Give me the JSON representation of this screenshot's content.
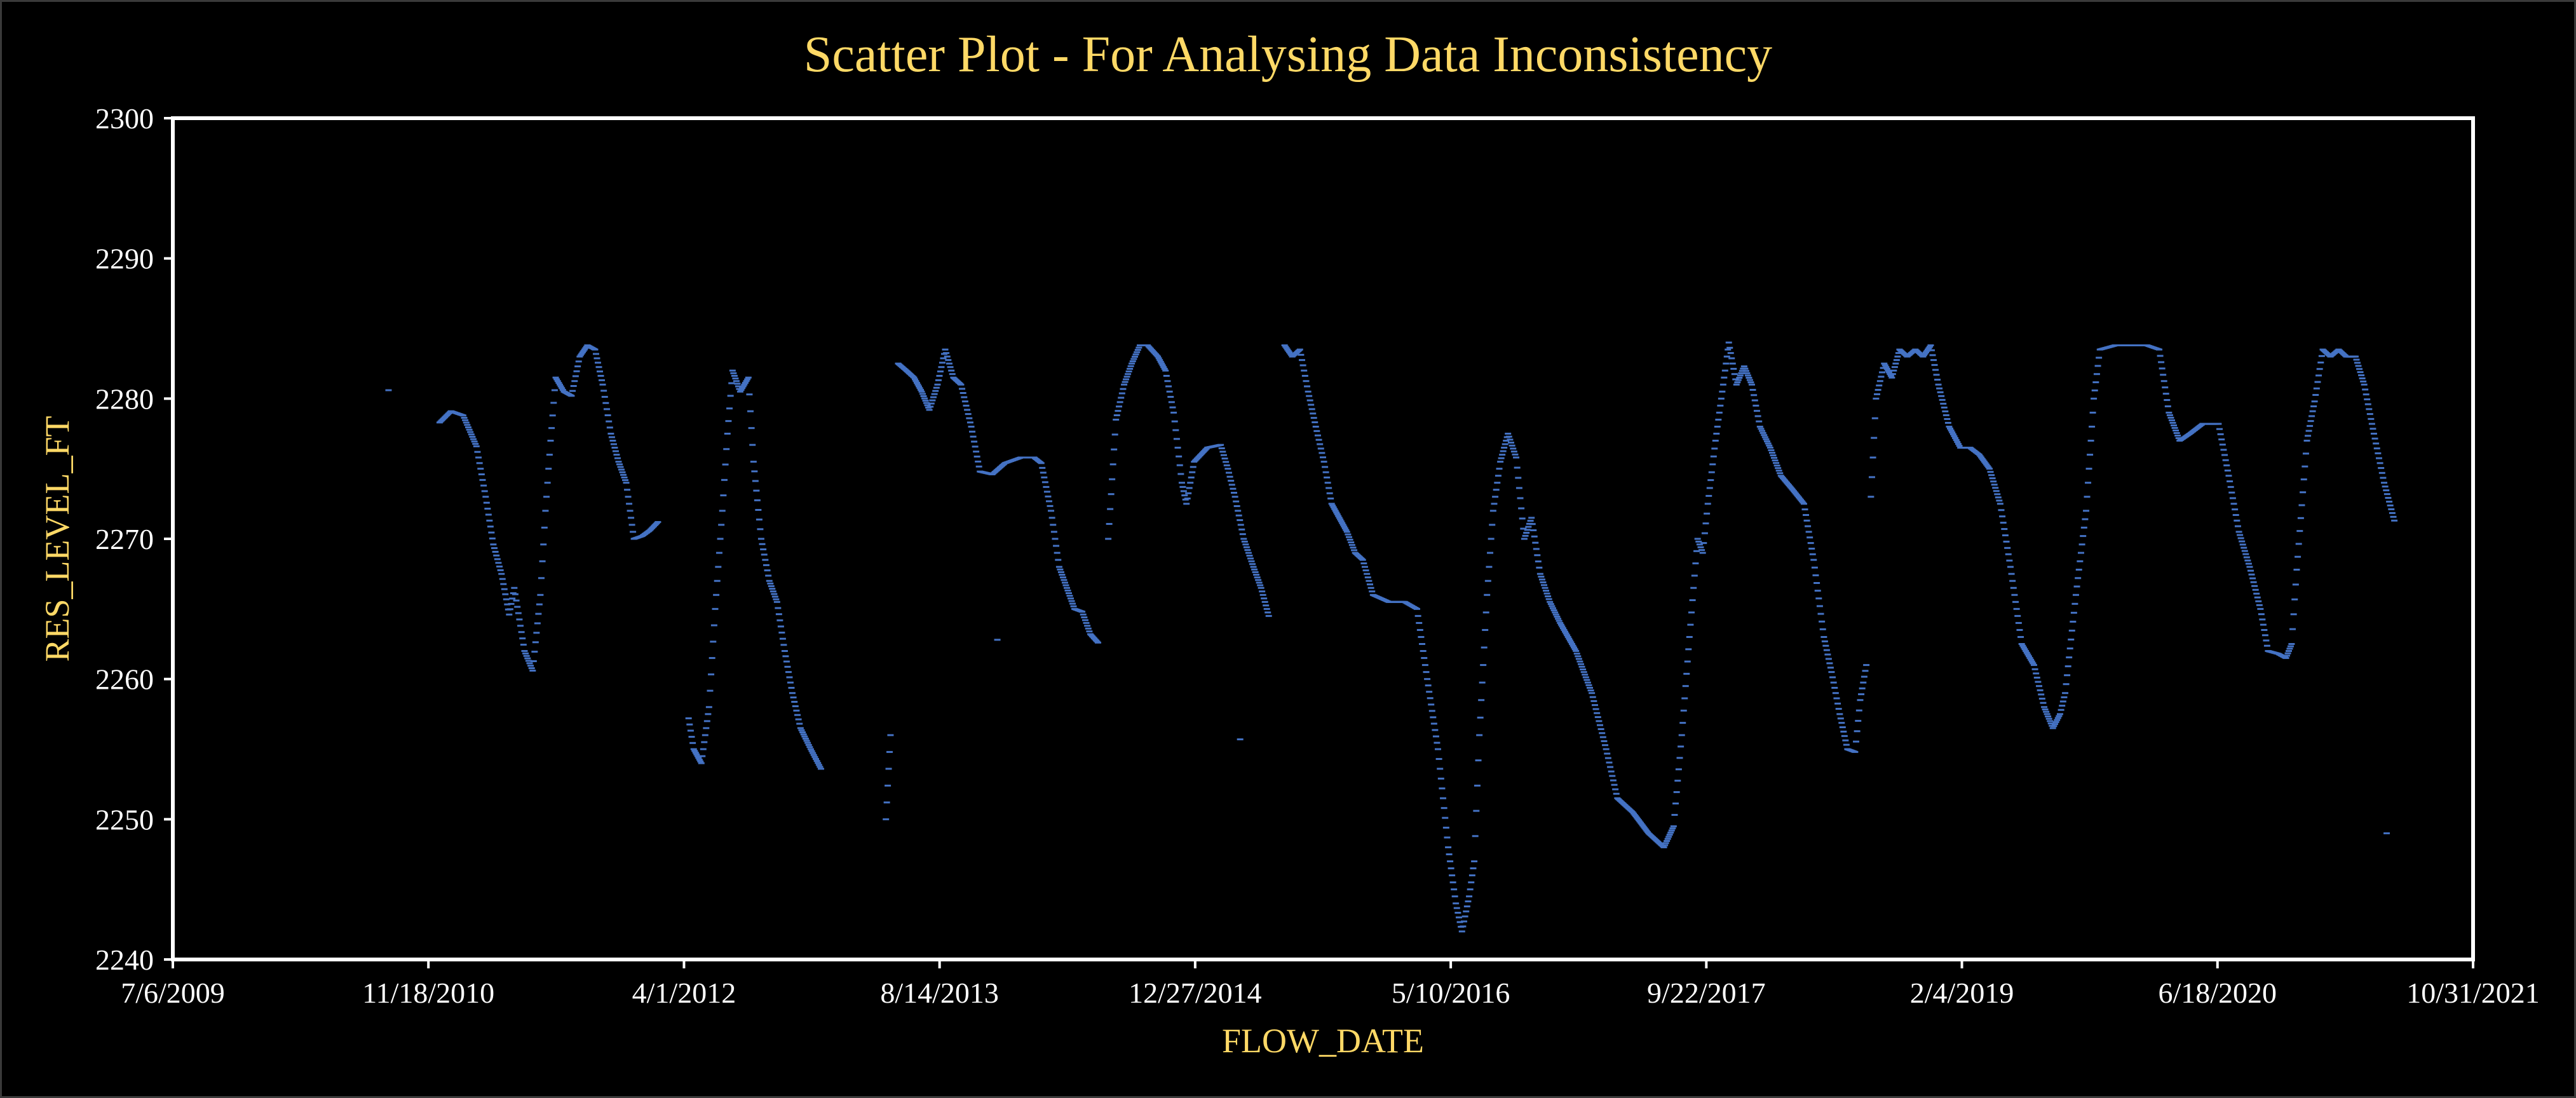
{
  "colors": {
    "background": "#000000",
    "title": "#ffd966",
    "axis_title": "#ffd966",
    "tick_label": "#ffffff",
    "frame": "#ffffff",
    "series": "#4472c4"
  },
  "chart_data": {
    "type": "scatter",
    "title": "Scatter Plot - For Analysing Data Inconsistency",
    "xlabel": "FLOW_DATE",
    "ylabel": "RES_LEVEL_FT",
    "x_type": "date",
    "xlim": [
      "2009-07-06",
      "2021-10-31"
    ],
    "ylim": [
      2240,
      2300
    ],
    "x_ticks": [
      "7/6/2009",
      "11/18/2010",
      "4/1/2012",
      "8/14/2013",
      "12/27/2014",
      "5/10/2016",
      "9/22/2017",
      "2/4/2019",
      "6/18/2020",
      "10/31/2021"
    ],
    "y_ticks": [
      2240,
      2250,
      2260,
      2270,
      2280,
      2290,
      2300
    ],
    "grid": false,
    "legend": "none",
    "series": [
      {
        "marker": "dash",
        "points": [
          [
            "2010-09-01",
            2280.6
          ],
          [
            "2010-12-10",
            2278.3
          ],
          [
            "2011-01-01",
            2279.1
          ],
          [
            "2011-01-25",
            2278.8
          ],
          [
            "2011-02-20",
            2276.6
          ],
          [
            "2011-03-10",
            2273.0
          ],
          [
            "2011-03-25",
            2269.6
          ],
          [
            "2011-04-10",
            2267.5
          ],
          [
            "2011-04-25",
            2264.6
          ],
          [
            "2011-05-05",
            2266.5
          ],
          [
            "2011-05-25",
            2262.0
          ],
          [
            "2011-06-10",
            2260.6
          ],
          [
            "2011-06-25",
            2266.0
          ],
          [
            "2011-07-05",
            2272.0
          ],
          [
            "2011-07-15",
            2277.0
          ],
          [
            "2011-07-25",
            2281.5
          ],
          [
            "2011-08-10",
            2280.5
          ],
          [
            "2011-08-25",
            2280.2
          ],
          [
            "2011-09-10",
            2283.0
          ],
          [
            "2011-09-25",
            2283.8
          ],
          [
            "2011-10-10",
            2283.5
          ],
          [
            "2011-10-25",
            2281.0
          ],
          [
            "2011-11-10",
            2277.5
          ],
          [
            "2011-11-25",
            2275.5
          ],
          [
            "2011-12-10",
            2274.0
          ],
          [
            "2011-12-25",
            2270.0
          ],
          [
            "2012-01-10",
            2270.2
          ],
          [
            "2012-01-25",
            2270.6
          ],
          [
            "2012-02-10",
            2271.2
          ],
          [
            "2012-04-10",
            2257.2
          ],
          [
            "2012-04-20",
            2255.0
          ],
          [
            "2012-05-05",
            2254.0
          ],
          [
            "2012-05-20",
            2258.0
          ],
          [
            "2012-06-01",
            2265.0
          ],
          [
            "2012-06-15",
            2272.0
          ],
          [
            "2012-06-25",
            2277.5
          ],
          [
            "2012-07-05",
            2282.0
          ],
          [
            "2012-07-20",
            2280.5
          ],
          [
            "2012-08-05",
            2281.5
          ],
          [
            "2012-08-15",
            2275.5
          ],
          [
            "2012-08-30",
            2270.0
          ],
          [
            "2012-09-15",
            2267.0
          ],
          [
            "2012-09-30",
            2265.5
          ],
          [
            "2012-10-15",
            2262.0
          ],
          [
            "2012-10-30",
            2259.0
          ],
          [
            "2012-11-15",
            2256.5
          ],
          [
            "2012-12-05",
            2255.0
          ],
          [
            "2012-12-25",
            2253.6
          ],
          [
            "2013-05-01",
            2250.0
          ],
          [
            "2013-05-10",
            2256.0
          ],
          [
            "2013-05-25",
            2282.5
          ],
          [
            "2013-06-10",
            2282.0
          ],
          [
            "2013-06-25",
            2281.5
          ],
          [
            "2013-07-10",
            2280.5
          ],
          [
            "2013-07-25",
            2279.2
          ],
          [
            "2013-08-10",
            2281.0
          ],
          [
            "2013-08-25",
            2283.5
          ],
          [
            "2013-09-10",
            2281.5
          ],
          [
            "2013-09-25",
            2281.0
          ],
          [
            "2013-10-15",
            2278.0
          ],
          [
            "2013-11-01",
            2274.8
          ],
          [
            "2013-11-25",
            2274.6
          ],
          [
            "2013-12-20",
            2275.4
          ],
          [
            "2014-01-20",
            2275.8
          ],
          [
            "2014-02-15",
            2275.8
          ],
          [
            "2014-03-01",
            2275.4
          ],
          [
            "2014-03-20",
            2272.0
          ],
          [
            "2014-04-05",
            2268.0
          ],
          [
            "2014-04-20",
            2266.5
          ],
          [
            "2014-05-05",
            2265.0
          ],
          [
            "2014-05-20",
            2264.8
          ],
          [
            "2014-06-05",
            2263.2
          ],
          [
            "2014-06-20",
            2262.6
          ],
          [
            "2013-12-05",
            2262.8
          ],
          [
            "2014-07-10",
            2270.0
          ],
          [
            "2014-07-25",
            2278.5
          ],
          [
            "2014-08-10",
            2281.0
          ],
          [
            "2014-08-25",
            2282.5
          ],
          [
            "2014-09-10",
            2283.8
          ],
          [
            "2014-09-25",
            2283.8
          ],
          [
            "2014-10-15",
            2283.0
          ],
          [
            "2014-10-30",
            2282.0
          ],
          [
            "2014-11-15",
            2279.0
          ],
          [
            "2014-12-01",
            2274.0
          ],
          [
            "2014-12-10",
            2272.5
          ],
          [
            "2014-12-25",
            2275.5
          ],
          [
            "2015-01-20",
            2276.5
          ],
          [
            "2015-02-15",
            2276.7
          ],
          [
            "2015-03-01",
            2275.0
          ],
          [
            "2015-03-15",
            2273.0
          ],
          [
            "2015-04-01",
            2270.0
          ],
          [
            "2015-04-20",
            2268.0
          ],
          [
            "2015-05-05",
            2266.5
          ],
          [
            "2015-05-20",
            2264.5
          ],
          [
            "2015-03-25",
            2255.7
          ],
          [
            "2015-06-20",
            2283.8
          ],
          [
            "2015-07-05",
            2283.0
          ],
          [
            "2015-07-20",
            2283.5
          ],
          [
            "2015-08-05",
            2280.5
          ],
          [
            "2015-08-20",
            2278.0
          ],
          [
            "2015-09-05",
            2275.5
          ],
          [
            "2015-09-20",
            2272.5
          ],
          [
            "2015-10-05",
            2271.5
          ],
          [
            "2015-10-20",
            2270.5
          ],
          [
            "2015-11-05",
            2269.0
          ],
          [
            "2015-11-20",
            2268.5
          ],
          [
            "2015-12-10",
            2266.0
          ],
          [
            "2016-01-10",
            2265.5
          ],
          [
            "2016-02-10",
            2265.5
          ],
          [
            "2016-03-05",
            2265.0
          ],
          [
            "2016-03-25",
            2260.0
          ],
          [
            "2016-04-15",
            2255.0
          ],
          [
            "2016-05-05",
            2248.0
          ],
          [
            "2016-05-20",
            2244.0
          ],
          [
            "2016-06-01",
            2242.0
          ],
          [
            "2016-06-15",
            2244.5
          ],
          [
            "2016-06-25",
            2247.0
          ],
          [
            "2016-07-05",
            2256.0
          ],
          [
            "2016-07-20",
            2266.0
          ],
          [
            "2016-08-01",
            2272.0
          ],
          [
            "2016-08-15",
            2275.5
          ],
          [
            "2016-08-30",
            2277.5
          ],
          [
            "2016-09-15",
            2275.8
          ],
          [
            "2016-10-01",
            2270.0
          ],
          [
            "2016-10-15",
            2271.5
          ],
          [
            "2016-11-01",
            2267.5
          ],
          [
            "2016-11-20",
            2265.5
          ],
          [
            "2016-12-10",
            2264.0
          ],
          [
            "2017-01-10",
            2262.0
          ],
          [
            "2017-02-10",
            2259.0
          ],
          [
            "2017-03-10",
            2255.0
          ],
          [
            "2017-04-01",
            2251.5
          ],
          [
            "2017-05-01",
            2250.5
          ],
          [
            "2017-06-01",
            2249.0
          ],
          [
            "2017-07-01",
            2248.0
          ],
          [
            "2017-07-20",
            2249.5
          ],
          [
            "2017-08-05",
            2256.0
          ],
          [
            "2017-08-20",
            2263.0
          ],
          [
            "2017-09-05",
            2270.0
          ],
          [
            "2017-09-15",
            2269.0
          ],
          [
            "2017-09-25",
            2272.5
          ],
          [
            "2017-10-10",
            2277.0
          ],
          [
            "2017-10-25",
            2281.0
          ],
          [
            "2017-11-05",
            2284.0
          ],
          [
            "2017-11-20",
            2281.0
          ],
          [
            "2017-12-05",
            2282.3
          ],
          [
            "2017-12-20",
            2281.0
          ],
          [
            "2018-01-05",
            2278.0
          ],
          [
            "2018-01-25",
            2276.5
          ],
          [
            "2018-02-15",
            2274.5
          ],
          [
            "2018-03-10",
            2273.5
          ],
          [
            "2018-04-01",
            2272.5
          ],
          [
            "2018-04-20",
            2268.5
          ],
          [
            "2018-05-10",
            2263.0
          ],
          [
            "2018-05-25",
            2260.5
          ],
          [
            "2018-06-10",
            2257.5
          ],
          [
            "2018-06-25",
            2255.0
          ],
          [
            "2018-07-10",
            2254.8
          ],
          [
            "2018-07-20",
            2258.5
          ],
          [
            "2018-08-01",
            2261.0
          ],
          [
            "2018-08-10",
            2273.0
          ],
          [
            "2018-08-20",
            2280.0
          ],
          [
            "2018-09-05",
            2282.5
          ],
          [
            "2018-09-20",
            2281.5
          ],
          [
            "2018-10-05",
            2283.5
          ],
          [
            "2018-10-20",
            2283.0
          ],
          [
            "2018-11-05",
            2283.5
          ],
          [
            "2018-11-20",
            2283.0
          ],
          [
            "2018-12-05",
            2283.8
          ],
          [
            "2018-12-20",
            2281.0
          ],
          [
            "2019-01-10",
            2278.0
          ],
          [
            "2019-02-01",
            2276.5
          ],
          [
            "2019-02-20",
            2276.5
          ],
          [
            "2019-03-10",
            2276.0
          ],
          [
            "2019-03-30",
            2275.0
          ],
          [
            "2019-04-20",
            2272.5
          ],
          [
            "2019-05-10",
            2268.0
          ],
          [
            "2019-06-01",
            2262.5
          ],
          [
            "2019-06-25",
            2261.0
          ],
          [
            "2019-07-15",
            2258.0
          ],
          [
            "2019-08-01",
            2256.5
          ],
          [
            "2019-08-15",
            2257.5
          ],
          [
            "2019-08-25",
            2259.0
          ],
          [
            "2019-09-15",
            2266.0
          ],
          [
            "2019-10-05",
            2272.0
          ],
          [
            "2019-10-20",
            2280.0
          ],
          [
            "2019-11-01",
            2283.5
          ],
          [
            "2019-12-01",
            2283.8
          ],
          [
            "2020-01-01",
            2283.8
          ],
          [
            "2020-02-01",
            2283.8
          ],
          [
            "2020-02-25",
            2283.5
          ],
          [
            "2020-03-15",
            2279.0
          ],
          [
            "2020-04-05",
            2277.0
          ],
          [
            "2020-04-25",
            2277.5
          ],
          [
            "2020-05-20",
            2278.2
          ],
          [
            "2020-06-20",
            2278.2
          ],
          [
            "2020-07-10",
            2274.5
          ],
          [
            "2020-07-30",
            2270.5
          ],
          [
            "2020-08-20",
            2268.0
          ],
          [
            "2020-09-10",
            2265.0
          ],
          [
            "2020-09-25",
            2262.0
          ],
          [
            "2020-10-15",
            2261.8
          ],
          [
            "2020-10-30",
            2261.5
          ],
          [
            "2020-11-10",
            2262.5
          ],
          [
            "2020-11-20",
            2267.8
          ],
          [
            "2020-12-10",
            2277.0
          ],
          [
            "2020-12-25",
            2279.8
          ],
          [
            "2021-01-10",
            2283.5
          ],
          [
            "2021-01-25",
            2283.0
          ],
          [
            "2021-02-10",
            2283.5
          ],
          [
            "2021-02-25",
            2283.0
          ],
          [
            "2021-03-15",
            2283.0
          ],
          [
            "2021-04-01",
            2281.0
          ],
          [
            "2021-04-20",
            2277.5
          ],
          [
            "2021-05-10",
            2274.0
          ],
          [
            "2021-05-30",
            2271.3
          ],
          [
            "2021-05-15",
            2249.0
          ]
        ]
      }
    ]
  }
}
